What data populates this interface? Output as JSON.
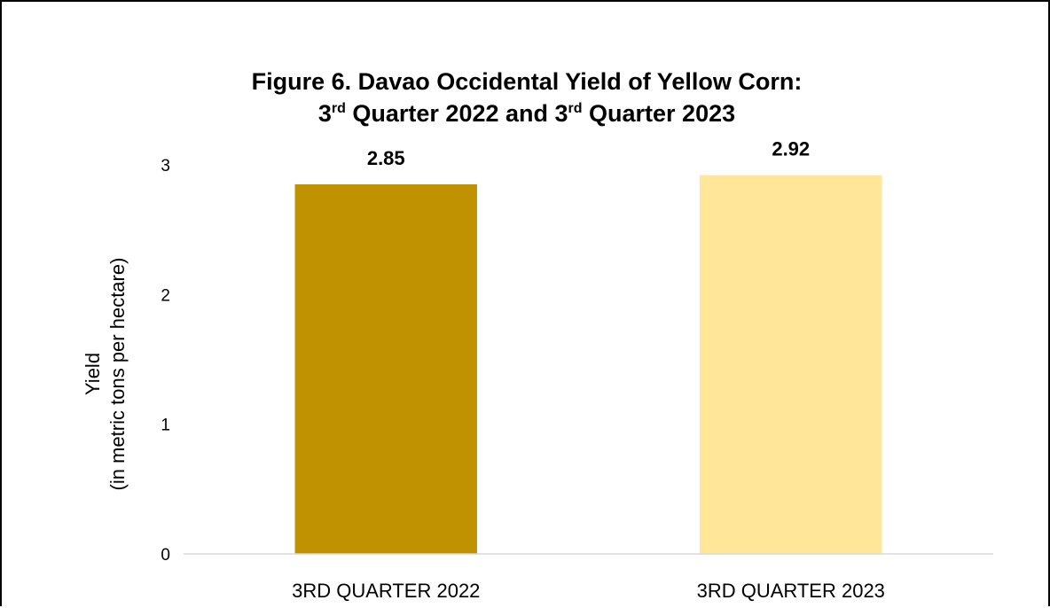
{
  "chart_data": {
    "type": "bar",
    "title": {
      "line1": "Figure 6. Davao Occidental Yield of Yellow Corn:",
      "line2_parts": [
        "3",
        "rd",
        " Quarter 2022 and 3",
        "rd",
        " Quarter 2023"
      ]
    },
    "ylabel_line1": "Yield",
    "ylabel_line2": "(in metric tons per hectare)",
    "xlabel": "",
    "ylim": [
      0,
      3
    ],
    "yticks": [
      "0",
      "1",
      "2",
      "3"
    ],
    "grid": false,
    "legend": "none",
    "categories": [
      "3RD QUARTER 2022",
      "3RD QUARTER 2023"
    ],
    "values": [
      2.85,
      2.92
    ],
    "data_labels": [
      "2.85",
      "2.92"
    ],
    "colors": [
      "#C09100",
      "#FFE699"
    ]
  }
}
